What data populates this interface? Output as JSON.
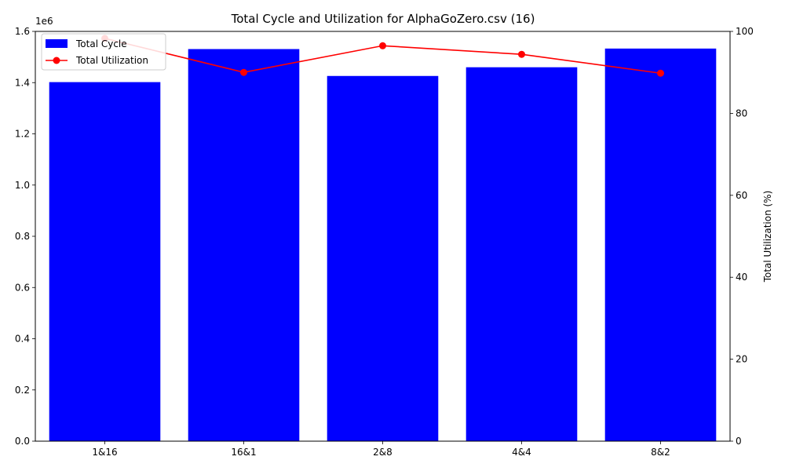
{
  "chart_data": {
    "type": "bar",
    "title": "Total Cycle and Utilization for AlphaGoZero.csv (16)",
    "categories": [
      "1&16",
      "16&1",
      "2&8",
      "4&4",
      "8&2"
    ],
    "series": [
      {
        "name": "Total Cycle",
        "type": "bar",
        "axis": "left",
        "color": "#0000ff",
        "values": [
          1402000,
          1531000,
          1426000,
          1460000,
          1533000
        ]
      },
      {
        "name": "Total Utilization",
        "type": "line",
        "axis": "right",
        "color": "#ff0000",
        "marker": "circle",
        "values": [
          98.3,
          90.0,
          96.5,
          94.4,
          89.8
        ]
      }
    ],
    "y_left": {
      "label": "",
      "lim": [
        0,
        1600000
      ],
      "ticks": [
        0,
        200000,
        400000,
        600000,
        800000,
        1000000,
        1200000,
        1400000,
        1600000
      ],
      "tick_labels": [
        "0.0",
        "0.2",
        "0.4",
        "0.6",
        "0.8",
        "1.0",
        "1.2",
        "1.4",
        "1.6"
      ],
      "offset_text": "1e6"
    },
    "y_right": {
      "label": "Total Utilization (%)",
      "lim": [
        0,
        100
      ],
      "ticks": [
        0,
        20,
        40,
        60,
        80,
        100
      ],
      "tick_labels": [
        "0",
        "20",
        "40",
        "60",
        "80",
        "100"
      ]
    },
    "xlabel": "",
    "grid": false,
    "legend_position": "top-left"
  }
}
